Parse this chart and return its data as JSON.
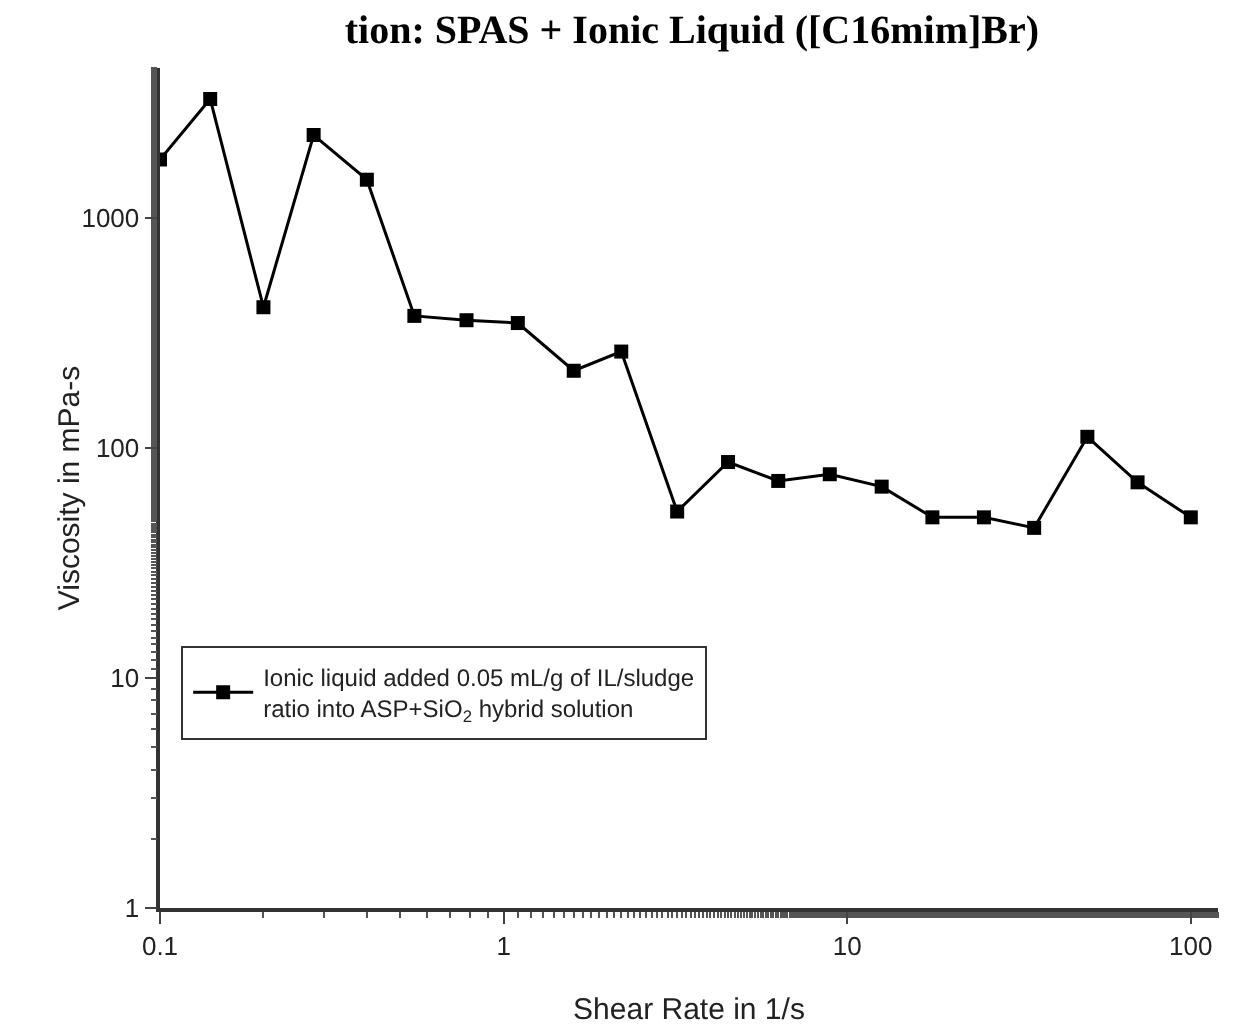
{
  "chart_data": {
    "type": "line",
    "title": "tion: SPAS + Ionic Liquid ([C16mim]Br)",
    "xlabel": "Shear Rate in 1/s",
    "ylabel": "Viscosity in mPa-s",
    "x": [
      0.1,
      0.14,
      0.2,
      0.28,
      0.4,
      0.55,
      0.78,
      1.1,
      1.6,
      2.2,
      3.2,
      4.5,
      6.3,
      8.9,
      12.6,
      17.7,
      25,
      35,
      50,
      70,
      100
    ],
    "series": [
      {
        "name": "Ionic liquid added 0.05 mL/g of IL/sludge ratio into ASP+SiO$_{2}$ hybrid solution",
        "color": "#000000",
        "values": [
          1800,
          3300,
          410,
          2300,
          1470,
          376,
          360,
          350,
          217,
          263,
          53,
          87,
          72,
          77,
          68,
          50,
          50,
          45,
          112,
          71,
          50
        ]
      }
    ],
    "log": "xy",
    "xlim": [
      0.1,
      120
    ],
    "ylim": [
      1,
      4500
    ],
    "xticks": [
      0.1,
      1,
      10,
      100
    ],
    "yticks": [
      1,
      10,
      100,
      1000
    ],
    "marker": "square",
    "line_style": "solid",
    "grid": false,
    "legend": "bottom left"
  }
}
